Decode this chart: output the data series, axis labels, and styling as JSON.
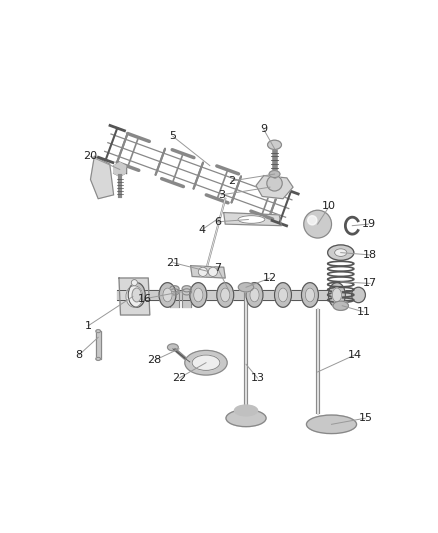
{
  "bg_color": "#ffffff",
  "fig_width": 4.38,
  "fig_height": 5.33,
  "dpi": 100,
  "line_color": "#666666",
  "label_color": "#222222",
  "leader_color": "#999999",
  "mid": "#888888",
  "dark": "#555555",
  "light": "#d8d8d8",
  "lighter": "#eeeeee"
}
